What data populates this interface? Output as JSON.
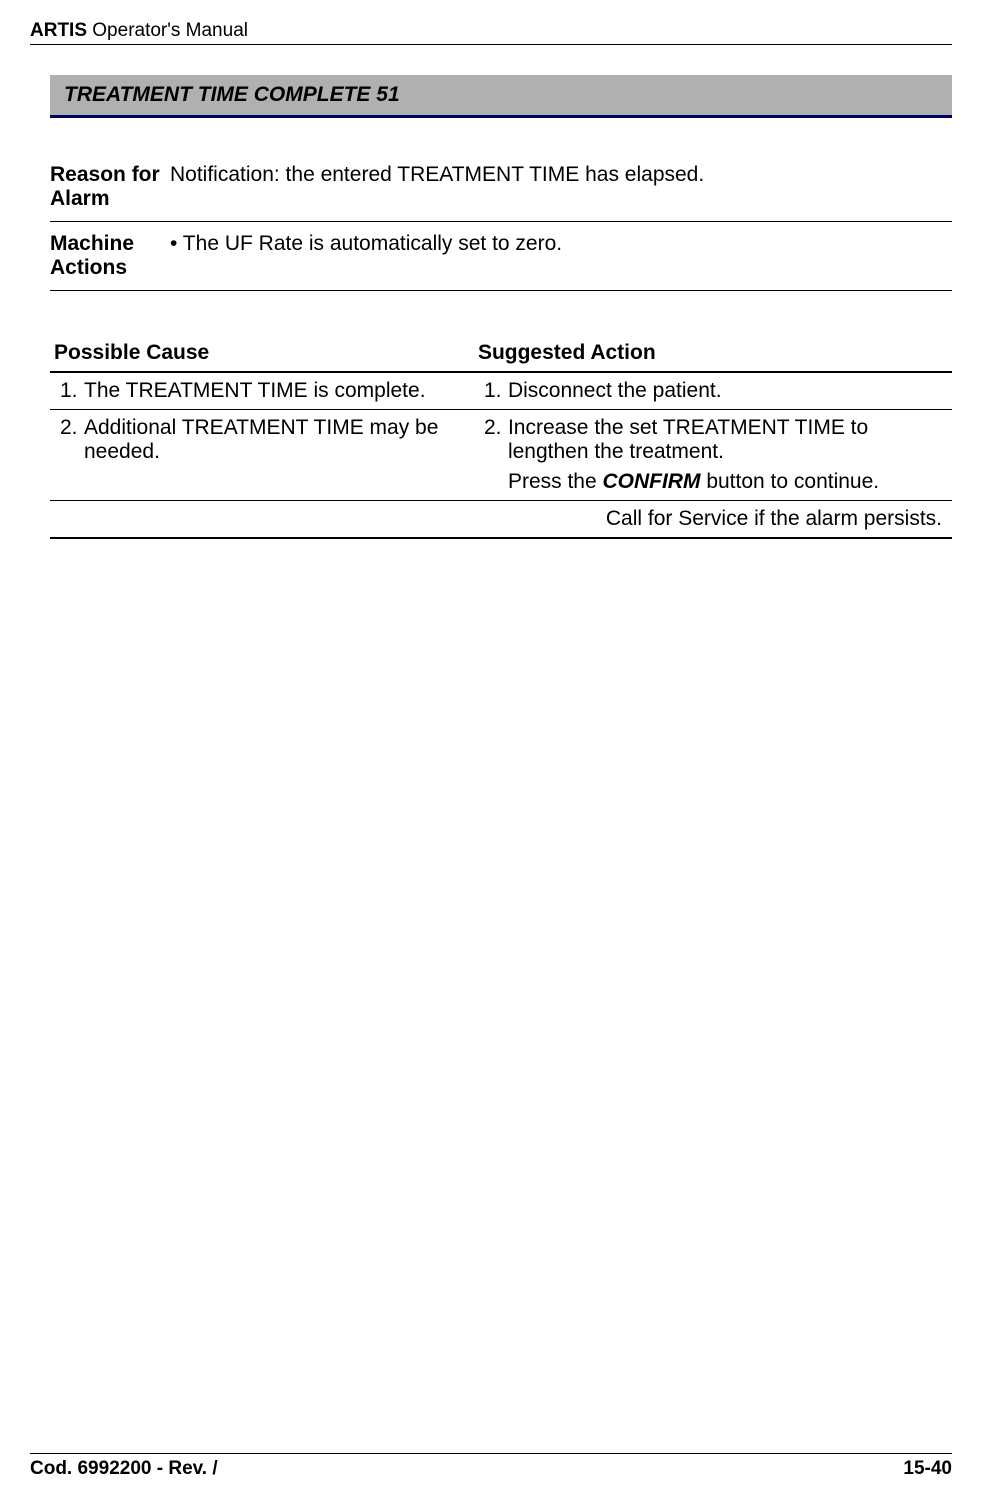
{
  "header": {
    "product": "ARTIS",
    "manual": "Operator's Manual"
  },
  "section": {
    "title": "TREATMENT TIME COMPLETE 51"
  },
  "info": {
    "reason_label": "Reason for Alarm",
    "reason_value": "Notification: the entered TREATMENT TIME has elapsed.",
    "machine_label": "Machine Actions",
    "machine_value": "• The UF Rate is automatically set to zero."
  },
  "causeaction": {
    "header_left": "Possible Cause",
    "header_right": "Suggested Action",
    "rows": [
      {
        "cause_num": "1.",
        "cause_text": "The TREATMENT TIME is complete.",
        "action_num": "1.",
        "action_text": "Disconnect the patient."
      },
      {
        "cause_num": "2.",
        "cause_text": "Additional TREATMENT TIME may be needed.",
        "action_num": "2.",
        "action_text": "Increase the set TREATMENT TIME to lengthen the treatment.",
        "action_sub_pre": "Press the ",
        "action_sub_bold": "CONFIRM",
        "action_sub_post": " button to continue."
      }
    ],
    "footer_note": "Call for Service if the alarm persists."
  },
  "footer": {
    "left": "Cod. 6992200 - Rev. /",
    "right": "15-40"
  }
}
